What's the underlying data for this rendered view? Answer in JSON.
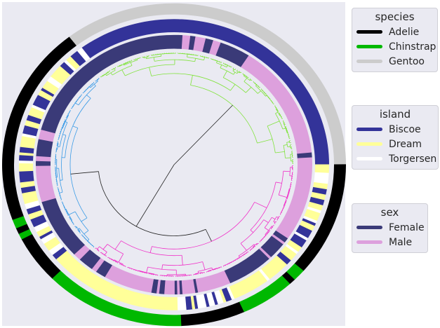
{
  "chart_data": {
    "type": "dendrogram",
    "layout": "circular",
    "grid": false,
    "legend_placement": "right",
    "leaf_count": 333,
    "clusters": [
      {
        "color": "#7fe33a",
        "leaves": 119
      },
      {
        "color": "#3a9be6",
        "leaves": 92
      },
      {
        "color": "#f02fc8",
        "leaves": 122
      }
    ],
    "link_color_above_threshold": "#222222",
    "rings": [
      {
        "name": "species",
        "runs": [
          [
            "Gentoo",
            118
          ],
          [
            "Adelie",
            67
          ],
          [
            "Chinstrap",
            3
          ],
          [
            "Adelie",
            2
          ],
          [
            "Chinstrap",
            2
          ],
          [
            "Adelie",
            16
          ],
          [
            "Chinstrap",
            44
          ],
          [
            "Adelie",
            20
          ],
          [
            "Chinstrap",
            17
          ],
          [
            "Adelie",
            2
          ],
          [
            "Chinstrap",
            4
          ],
          [
            "Adelie",
            38
          ]
        ]
      },
      {
        "name": "island",
        "runs": [
          [
            "Biscoe",
            117
          ],
          [
            "Torgersen",
            2
          ],
          [
            "Biscoe",
            3
          ],
          [
            "Dream",
            2
          ],
          [
            "Torgersen",
            1
          ],
          [
            "Biscoe",
            2
          ],
          [
            "Dream",
            5
          ],
          [
            "Torgersen",
            2
          ],
          [
            "Dream",
            3
          ],
          [
            "Biscoe",
            1
          ],
          [
            "Dream",
            2
          ],
          [
            "Biscoe",
            4
          ],
          [
            "Torgersen",
            1
          ],
          [
            "Dream",
            3
          ],
          [
            "Biscoe",
            2
          ],
          [
            "Dream",
            2
          ],
          [
            "Biscoe",
            3
          ],
          [
            "Torgersen",
            1
          ],
          [
            "Dream",
            4
          ],
          [
            "Biscoe",
            2
          ],
          [
            "Dream",
            1
          ],
          [
            "Biscoe",
            2
          ],
          [
            "Torgersen",
            1
          ],
          [
            "Dream",
            3
          ],
          [
            "Biscoe",
            4
          ],
          [
            "Dream",
            2
          ],
          [
            "Biscoe",
            2
          ],
          [
            "Dream",
            4
          ],
          [
            "Torgersen",
            2
          ],
          [
            "Biscoe",
            2
          ],
          [
            "Dream",
            2
          ],
          [
            "Biscoe",
            3
          ],
          [
            "Torgersen",
            2
          ],
          [
            "Dream",
            2
          ],
          [
            "Biscoe",
            1
          ],
          [
            "Torgersen",
            2
          ],
          [
            "Dream",
            3
          ],
          [
            "Torgersen",
            2
          ],
          [
            "Biscoe",
            2
          ],
          [
            "Dream",
            3
          ],
          [
            "Dream",
            44
          ],
          [
            "Torgersen",
            3
          ],
          [
            "Biscoe",
            2
          ],
          [
            "Dream",
            1
          ],
          [
            "Biscoe",
            1
          ],
          [
            "Torgersen",
            3
          ],
          [
            "Biscoe",
            1
          ],
          [
            "Torgersen",
            2
          ],
          [
            "Biscoe",
            1
          ],
          [
            "Torgersen",
            2
          ],
          [
            "Dream",
            1
          ],
          [
            "Biscoe",
            2
          ],
          [
            "Torgersen",
            1
          ],
          [
            "Dream",
            13
          ],
          [
            "Torgersen",
            1
          ],
          [
            "Dream",
            8
          ],
          [
            "Biscoe",
            2
          ],
          [
            "Dream",
            3
          ],
          [
            "Torgersen",
            1
          ],
          [
            "Dream",
            2
          ],
          [
            "Biscoe",
            3
          ],
          [
            "Torgersen",
            1
          ],
          [
            "Biscoe",
            3
          ],
          [
            "Dream",
            2
          ],
          [
            "Biscoe",
            1
          ],
          [
            "Torgersen",
            1
          ],
          [
            "Dream",
            3
          ],
          [
            "Torgersen",
            1
          ],
          [
            "Dream",
            2
          ],
          [
            "Biscoe",
            2
          ],
          [
            "Dream",
            2
          ],
          [
            "Biscoe",
            2
          ],
          [
            "Dream",
            2
          ],
          [
            "Torgersen",
            4
          ],
          [
            "Dream",
            3
          ]
        ]
      },
      {
        "name": "sex",
        "runs": [
          [
            "Male",
            3
          ],
          [
            "Female",
            2
          ],
          [
            "Male",
            48
          ],
          [
            "Female",
            12
          ],
          [
            "Male",
            3
          ],
          [
            "Female",
            3
          ],
          [
            "Male",
            4
          ],
          [
            "Female",
            2
          ],
          [
            "Male",
            3
          ],
          [
            "Female",
            72
          ],
          [
            "Male",
            4
          ],
          [
            "Female",
            7
          ],
          [
            "Male",
            2
          ],
          [
            "Female",
            2
          ],
          [
            "Male",
            15
          ],
          [
            "Female",
            25
          ],
          [
            "Male",
            3
          ],
          [
            "Female",
            6
          ],
          [
            "Male",
            2
          ],
          [
            "Female",
            4
          ],
          [
            "Male",
            19
          ],
          [
            "Female",
            2
          ],
          [
            "Male",
            1
          ],
          [
            "Female",
            2
          ],
          [
            "Male",
            4
          ],
          [
            "Female",
            1
          ],
          [
            "Male",
            1
          ],
          [
            "Female",
            1
          ],
          [
            "Male",
            5
          ],
          [
            "Female",
            1
          ],
          [
            "Male",
            13
          ],
          [
            "Female",
            18
          ],
          [
            "Male",
            1
          ],
          [
            "Female",
            7
          ],
          [
            "Male",
            1
          ],
          [
            "Female",
            2
          ],
          [
            "Male",
            32
          ]
        ]
      }
    ],
    "legends": [
      {
        "title": "species",
        "entries": [
          {
            "label": "Adelie",
            "color": "#000000"
          },
          {
            "label": "Chinstrap",
            "color": "#00b800"
          },
          {
            "label": "Gentoo",
            "color": "#cccccc"
          }
        ]
      },
      {
        "title": "island",
        "entries": [
          {
            "label": "Biscoe",
            "color": "#333399"
          },
          {
            "label": "Dream",
            "color": "#ffff99"
          },
          {
            "label": "Torgersen",
            "color": "#ffffff"
          }
        ]
      },
      {
        "title": "sex",
        "entries": [
          {
            "label": "Female",
            "color": "#3a3a78"
          },
          {
            "label": "Male",
            "color": "#dda0dd"
          }
        ]
      }
    ]
  }
}
